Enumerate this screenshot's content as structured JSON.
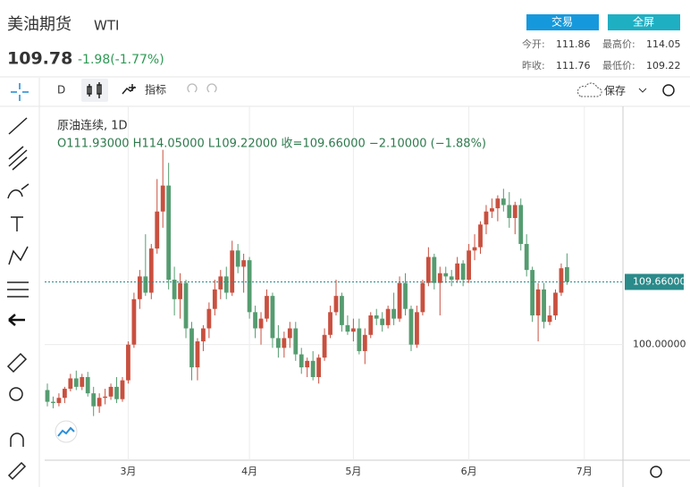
{
  "header": {
    "title": "美油期货",
    "symbol": "WTI",
    "price": "109.78",
    "change": "-1.98(-1.77%)",
    "buttons": [
      "交易",
      "全屏"
    ],
    "stats": [
      {
        "label": "今开:",
        "value": "111.86"
      },
      {
        "label": "最高价:",
        "value": "114.05"
      },
      {
        "label": "昨收:",
        "value": "111.76"
      },
      {
        "label": "最低价:",
        "value": "109.22"
      }
    ]
  },
  "toolbar": {
    "interval": "D",
    "indicators": "指标",
    "save": "保存"
  },
  "chart_data": {
    "type": "candlestick",
    "title": "原油连续, 1D",
    "ohlc_legend": "O111.93000  H114.05000  L109.22000  收=109.66000  −2.10000 (−1.88%)",
    "up_color": "#c9503f",
    "down_color": "#559c70",
    "grid": true,
    "ylim": [
      82.2,
      136.7
    ],
    "yticks": [
      {
        "value": 100,
        "label": "100.00000"
      }
    ],
    "last_price": {
      "value": 109.66,
      "label": "109.66000",
      "color": "#2b8a8a"
    },
    "categories": [
      null,
      null,
      null,
      null,
      null,
      null,
      null,
      null,
      null,
      null,
      null,
      null,
      null,
      null,
      "3月",
      null,
      null,
      null,
      null,
      null,
      null,
      null,
      null,
      null,
      null,
      null,
      null,
      null,
      null,
      null,
      null,
      null,
      null,
      null,
      null,
      "4月",
      null,
      null,
      null,
      null,
      null,
      null,
      null,
      null,
      null,
      null,
      null,
      null,
      null,
      null,
      null,
      null,
      null,
      "5月",
      null,
      null,
      null,
      null,
      null,
      null,
      null,
      null,
      null,
      null,
      null,
      null,
      null,
      null,
      null,
      null,
      null,
      null,
      null,
      "6月",
      null,
      null,
      null,
      null,
      null,
      null,
      null,
      null,
      null,
      null,
      null,
      null,
      null,
      null,
      null,
      null,
      null,
      null,
      null,
      "7月"
    ],
    "ohlc": [
      [
        93.0,
        94.0,
        90.5,
        91.2
      ],
      [
        91.2,
        92.0,
        90.2,
        91.0
      ],
      [
        91.0,
        92.5,
        90.5,
        91.8
      ],
      [
        91.8,
        93.5,
        91.0,
        93.2
      ],
      [
        93.2,
        95.5,
        92.8,
        94.8
      ],
      [
        94.8,
        96.0,
        93.0,
        93.5
      ],
      [
        93.5,
        95.5,
        93.0,
        95.0
      ],
      [
        95.0,
        95.8,
        92.0,
        92.5
      ],
      [
        92.5,
        93.5,
        89.0,
        90.5
      ],
      [
        90.5,
        92.5,
        89.5,
        91.8
      ],
      [
        91.8,
        93.2,
        90.8,
        92.0
      ],
      [
        92.0,
        94.0,
        91.5,
        93.5
      ],
      [
        93.5,
        95.0,
        91.0,
        91.6
      ],
      [
        91.6,
        95.0,
        91.2,
        94.5
      ],
      [
        94.5,
        100.5,
        94.0,
        100.0
      ],
      [
        100.0,
        108.0,
        99.5,
        107.0
      ],
      [
        107.0,
        111.5,
        105.5,
        110.5
      ],
      [
        110.5,
        117.0,
        107.5,
        108.0
      ],
      [
        108.0,
        115.5,
        107.0,
        114.8
      ],
      [
        114.8,
        125.5,
        114.0,
        120.5
      ],
      [
        120.5,
        130.0,
        118.0,
        124.5
      ],
      [
        124.5,
        128.0,
        108.5,
        110.0
      ],
      [
        110.0,
        112.0,
        104.5,
        107.0
      ],
      [
        107.0,
        111.0,
        104.0,
        109.5
      ],
      [
        109.5,
        110.0,
        101.0,
        102.5
      ],
      [
        102.5,
        103.5,
        94.5,
        96.5
      ],
      [
        96.5,
        101.0,
        94.5,
        100.5
      ],
      [
        100.5,
        103.0,
        99.0,
        102.5
      ],
      [
        102.5,
        106.5,
        101.0,
        105.5
      ],
      [
        105.5,
        110.0,
        104.5,
        108.5
      ],
      [
        108.5,
        111.5,
        107.0,
        110.5
      ],
      [
        110.5,
        112.0,
        107.0,
        108.0
      ],
      [
        108.0,
        116.0,
        107.5,
        114.5
      ],
      [
        114.5,
        115.5,
        111.0,
        112.0
      ],
      [
        112.0,
        114.0,
        108.0,
        113.0
      ],
      [
        113.0,
        113.5,
        104.0,
        105.0
      ],
      [
        105.0,
        106.0,
        101.0,
        102.5
      ],
      [
        102.5,
        105.0,
        100.0,
        104.0
      ],
      [
        104.0,
        108.5,
        103.5,
        107.5
      ],
      [
        107.5,
        108.0,
        99.5,
        101.0
      ],
      [
        101.0,
        103.0,
        98.0,
        99.5
      ],
      [
        99.5,
        102.0,
        98.0,
        101.0
      ],
      [
        101.0,
        103.5,
        99.5,
        102.5
      ],
      [
        102.5,
        103.5,
        97.5,
        98.5
      ],
      [
        98.5,
        99.5,
        95.5,
        96.5
      ],
      [
        96.5,
        98.0,
        95.0,
        97.5
      ],
      [
        97.5,
        99.0,
        94.5,
        95.0
      ],
      [
        95.0,
        98.5,
        94.0,
        98.0
      ],
      [
        98.0,
        102.5,
        97.5,
        101.5
      ],
      [
        101.5,
        106.0,
        101.0,
        105.0
      ],
      [
        105.0,
        110.0,
        104.5,
        107.5
      ],
      [
        107.5,
        108.0,
        102.0,
        103.0
      ],
      [
        103.0,
        104.5,
        101.5,
        102.0
      ],
      [
        102.0,
        104.0,
        100.5,
        102.5
      ],
      [
        102.5,
        104.0,
        98.5,
        99.0
      ],
      [
        99.0,
        102.5,
        97.0,
        101.5
      ],
      [
        101.5,
        105.0,
        101.0,
        104.5
      ],
      [
        104.5,
        105.5,
        103.0,
        104.0
      ],
      [
        104.0,
        105.0,
        102.0,
        103.0
      ],
      [
        103.0,
        106.0,
        102.5,
        105.5
      ],
      [
        105.5,
        108.0,
        103.0,
        104.0
      ],
      [
        104.0,
        110.5,
        103.5,
        109.5
      ],
      [
        109.5,
        111.0,
        104.5,
        105.5
      ],
      [
        105.5,
        106.0,
        99.0,
        100.0
      ],
      [
        100.0,
        106.0,
        99.5,
        105.0
      ],
      [
        105.0,
        110.0,
        104.5,
        109.5
      ],
      [
        109.5,
        115.0,
        109.0,
        113.5
      ],
      [
        113.5,
        114.0,
        108.5,
        109.5
      ],
      [
        109.5,
        112.0,
        104.5,
        111.0
      ],
      [
        111.0,
        112.0,
        109.5,
        110.5
      ],
      [
        110.5,
        111.5,
        109.0,
        110.0
      ],
      [
        110.0,
        113.5,
        109.5,
        112.5
      ],
      [
        112.5,
        113.0,
        109.0,
        110.0
      ],
      [
        110.0,
        115.5,
        109.5,
        114.5
      ],
      [
        114.5,
        117.0,
        113.0,
        115.0
      ],
      [
        115.0,
        119.0,
        114.0,
        118.5
      ],
      [
        118.5,
        121.5,
        117.0,
        120.5
      ],
      [
        120.5,
        122.5,
        119.5,
        121.0
      ],
      [
        121.0,
        123.0,
        119.0,
        122.5
      ],
      [
        122.5,
        124.0,
        120.5,
        121.5
      ],
      [
        121.5,
        123.5,
        118.0,
        119.5
      ],
      [
        119.5,
        122.0,
        117.0,
        121.5
      ],
      [
        121.5,
        122.5,
        114.5,
        115.5
      ],
      [
        115.5,
        117.0,
        110.5,
        111.5
      ],
      [
        111.5,
        112.0,
        103.5,
        104.5
      ],
      [
        104.5,
        109.5,
        100.5,
        108.5
      ],
      [
        108.5,
        109.5,
        102.5,
        103.5
      ],
      [
        103.5,
        106.0,
        103.0,
        104.5
      ],
      [
        104.5,
        108.5,
        103.8,
        108.0
      ],
      [
        108.0,
        112.5,
        107.5,
        111.76
      ],
      [
        111.93,
        114.05,
        109.22,
        109.66
      ],
      null,
      null,
      null
    ]
  }
}
